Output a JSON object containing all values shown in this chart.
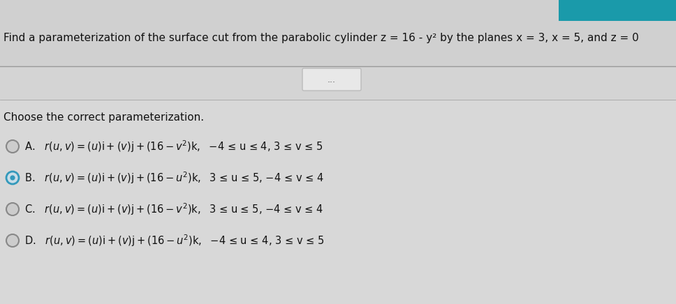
{
  "bg_color": "#d8d8d8",
  "top_section_color": "#c8c8c8",
  "top_bar_color": "#1a9aaa",
  "question_text": "Find a parameterization of the surface cut from the parabolic cylinder z = 16 - y² by the planes x = 3, x = 5, and z = 0",
  "subtitle": "Choose the correct parameterization.",
  "options": [
    {
      "label": "A.",
      "selected": false,
      "var": "v",
      "ranges": "−4 ≤ u ≤ 4, 3 ≤ v ≤ 5"
    },
    {
      "label": "B.",
      "selected": true,
      "var": "u",
      "ranges": "3 ≤ u ≤ 5, −4 ≤ v ≤ 4"
    },
    {
      "label": "C.",
      "selected": false,
      "var": "v",
      "ranges": "3 ≤ u ≤ 5, −4 ≤ v ≤ 4"
    },
    {
      "label": "D.",
      "selected": false,
      "var": "u",
      "ranges": "−4 ≤ u ≤ 4, 3 ≤ v ≤ 5"
    }
  ],
  "font_size_question": 11,
  "font_size_subtitle": 11,
  "font_size_options": 10.5
}
